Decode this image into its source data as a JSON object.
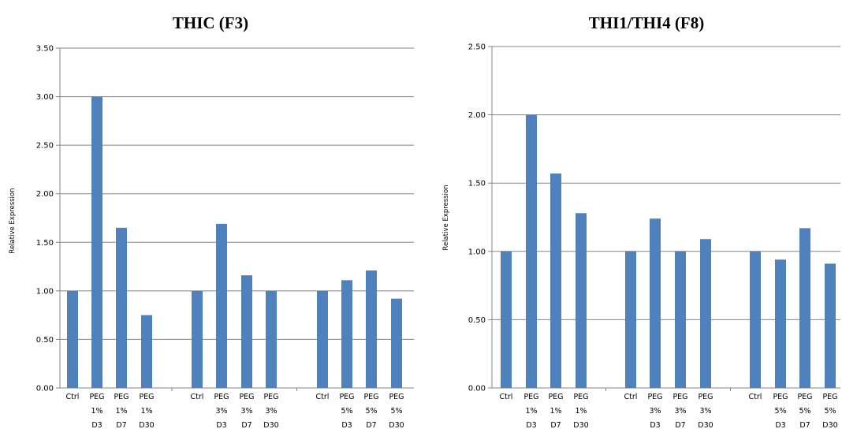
{
  "colors": {
    "bar": "#4f81bd",
    "grid": "#858585"
  },
  "chart_data": [
    {
      "type": "bar",
      "title": "THIC (F3)",
      "ylabel": "Relative Expression",
      "xlabel": "",
      "ylim": [
        0,
        3.5
      ],
      "yticks": [
        "0.00",
        "0.50",
        "1.00",
        "1.50",
        "2.00",
        "2.50",
        "3.00",
        "3.50"
      ],
      "grid": true,
      "categories": [
        [
          "Ctrl"
        ],
        [
          "PEG",
          "1%",
          "D3"
        ],
        [
          "PEG",
          "1%",
          "D7"
        ],
        [
          "PEG",
          "1%",
          "D30"
        ],
        [
          "Ctrl"
        ],
        [
          "PEG",
          "3%",
          "D3"
        ],
        [
          "PEG",
          "3%",
          "D7"
        ],
        [
          "PEG",
          "3%",
          "D30"
        ],
        [
          "Ctrl"
        ],
        [
          "PEG",
          "5%",
          "D3"
        ],
        [
          "PEG",
          "5%",
          "D7"
        ],
        [
          "PEG",
          "5%",
          "D30"
        ]
      ],
      "values": [
        1.0,
        3.0,
        1.65,
        0.75,
        1.0,
        1.69,
        1.16,
        1.0,
        1.0,
        1.11,
        1.21,
        0.92
      ]
    },
    {
      "type": "bar",
      "title": "THI1/THI4 (F8)",
      "ylabel": "Relative Expression",
      "xlabel": "",
      "ylim": [
        0,
        2.5
      ],
      "yticks": [
        "0.00",
        "0.50",
        "1.00",
        "1.50",
        "2.00",
        "2.50"
      ],
      "grid": true,
      "categories": [
        [
          "Ctrl"
        ],
        [
          "PEG",
          "1%",
          "D3"
        ],
        [
          "PEG",
          "1%",
          "D7"
        ],
        [
          "PEG",
          "1%",
          "D30"
        ],
        [
          "Ctrl"
        ],
        [
          "PEG",
          "3%",
          "D3"
        ],
        [
          "PEG",
          "3%",
          "D7"
        ],
        [
          "PEG",
          "3%",
          "D30"
        ],
        [
          "Ctrl"
        ],
        [
          "PEG",
          "5%",
          "D3"
        ],
        [
          "PEG",
          "5%",
          "D7"
        ],
        [
          "PEG",
          "5%",
          "D30"
        ]
      ],
      "values": [
        1.0,
        2.0,
        1.57,
        1.28,
        1.0,
        1.24,
        1.0,
        1.09,
        1.0,
        0.94,
        1.17,
        0.91
      ]
    }
  ]
}
